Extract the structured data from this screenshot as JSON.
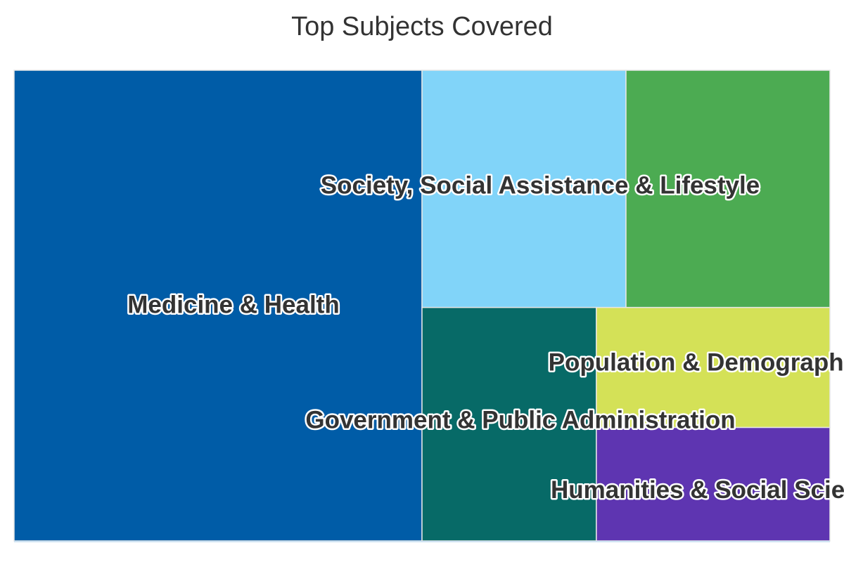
{
  "chart_data": {
    "type": "treemap",
    "title": "Top Subjects Covered",
    "series": [
      {
        "name": "Medicine & Health",
        "value": 50.0,
        "color": "#005CA7"
      },
      {
        "name": "Society, Social Assistance & Lifestyle",
        "value": 25.2,
        "color": "#81D4F9"
      },
      {
        "name": "Government & Public Administration",
        "value": 10.6,
        "color": "#076A67"
      },
      {
        "name": "Population & Demographics",
        "value": 7.3,
        "color": "#D4E157"
      },
      {
        "name": "Humanities & Social Sciences",
        "value": 6.9,
        "color": "#5E35B1"
      }
    ],
    "sub_colors": {
      "Society, Social Assistance & Lifestyle": "#4CAB52"
    }
  }
}
